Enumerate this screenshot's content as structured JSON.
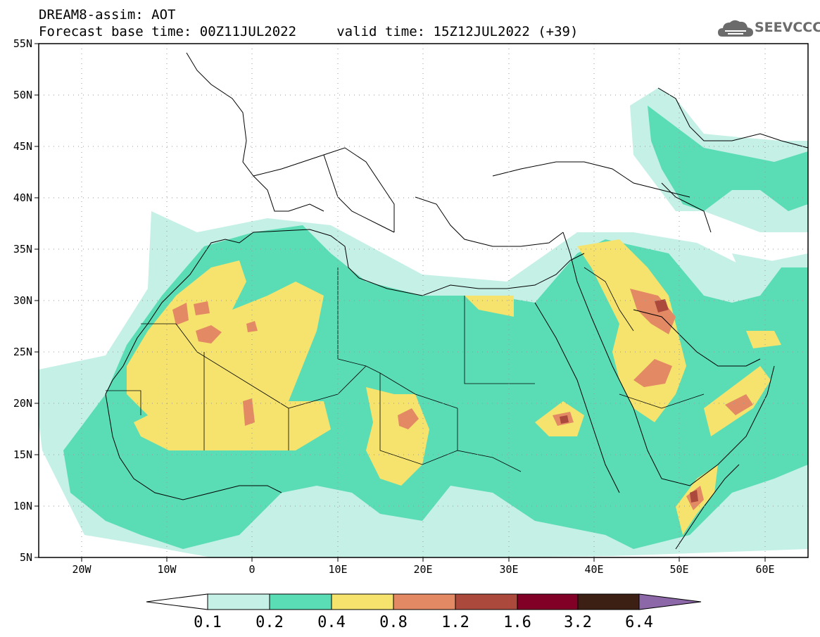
{
  "header": {
    "line1": "DREAM8-assim: AOT",
    "line2": "Forecast base time: 00Z11JUL2022     valid time: 15Z12JUL2022 (+39)"
  },
  "logo": {
    "text": "SEEVCCC",
    "icon": "cloud-icon"
  },
  "axes": {
    "lat_labels": [
      "55N",
      "50N",
      "45N",
      "40N",
      "35N",
      "30N",
      "25N",
      "20N",
      "15N",
      "10N",
      "5N"
    ],
    "lon_labels": [
      "20W",
      "10W",
      "0",
      "10E",
      "20E",
      "30E",
      "40E",
      "50E",
      "60E"
    ],
    "lat_range": [
      5,
      55
    ],
    "lon_range": [
      -25,
      65
    ]
  },
  "colorbar": {
    "labels": [
      "0.1",
      "0.2",
      "0.4",
      "0.8",
      "1.2",
      "1.6",
      "3.2",
      "6.4"
    ],
    "colors": [
      "#ffffff",
      "#c5f0e6",
      "#5adcb4",
      "#f5e36e",
      "#e38a64",
      "#ab4a3c",
      "#800026",
      "#3d2014",
      "#8c68a8"
    ]
  }
}
